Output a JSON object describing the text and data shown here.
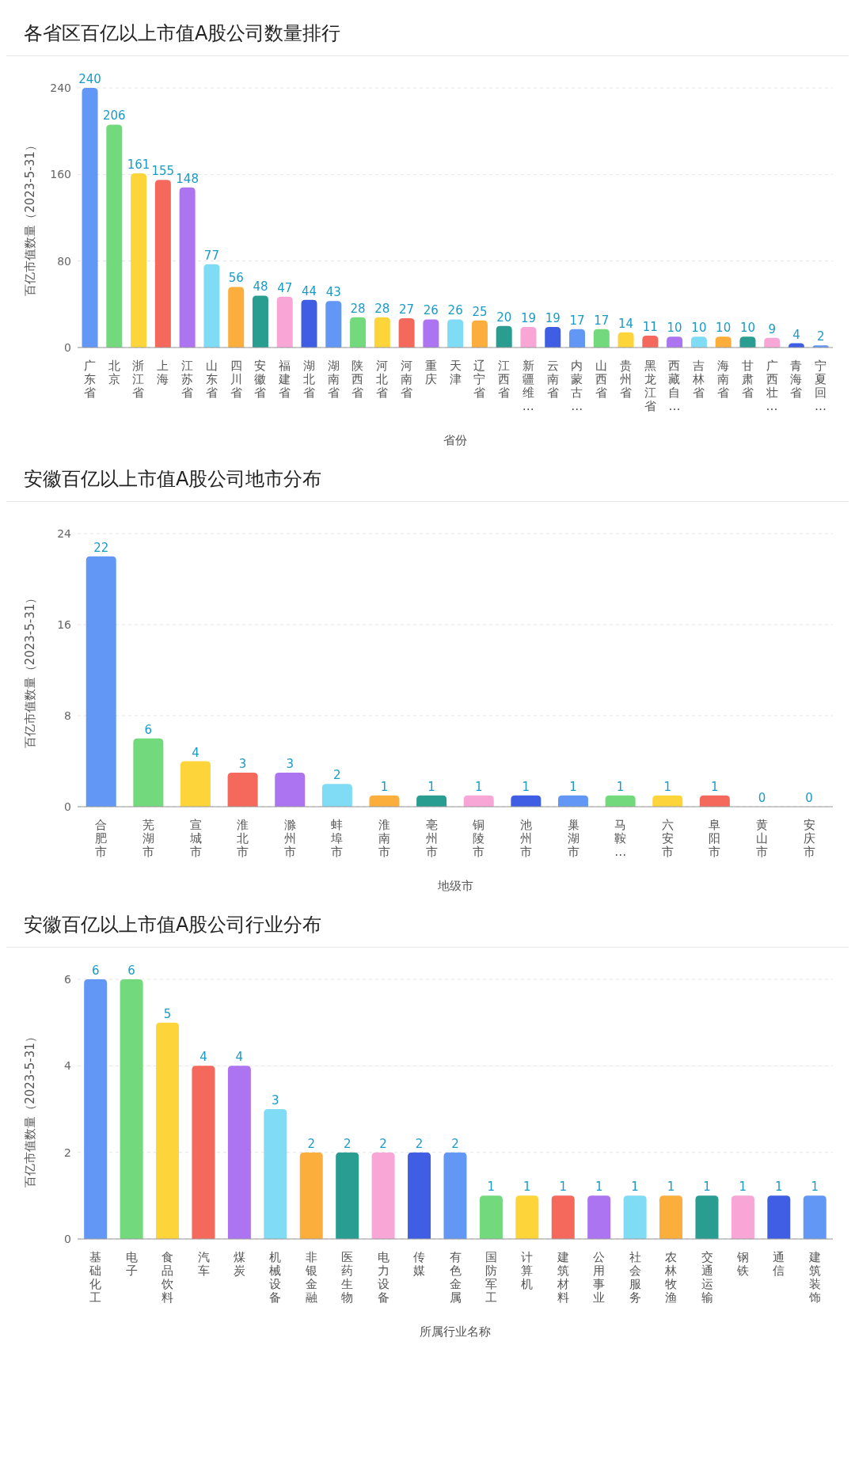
{
  "chart_data": [
    {
      "type": "bar",
      "title": "各省区百亿以上市值A股公司数量排行",
      "xlabel": "省份",
      "ylabel": "百亿市值数量（2023-5-31）",
      "categories": [
        "广东省",
        "北京",
        "浙江省",
        "上海",
        "江苏省",
        "山东省",
        "四川省",
        "安徽省",
        "福建省",
        "湖北省",
        "湖南省",
        "陕西省",
        "河北省",
        "河南省",
        "重庆",
        "天津",
        "辽宁省",
        "江西省",
        "新疆维…",
        "云南省",
        "内蒙古…",
        "山西省",
        "贵州省",
        "黑龙江省",
        "西藏自…",
        "吉林省",
        "海南省",
        "甘肃省",
        "广西壮…",
        "青海省",
        "宁夏回…"
      ],
      "values": [
        240,
        206,
        161,
        155,
        148,
        77,
        56,
        48,
        47,
        44,
        43,
        28,
        28,
        27,
        26,
        26,
        25,
        20,
        19,
        19,
        17,
        17,
        14,
        11,
        10,
        10,
        10,
        10,
        9,
        4,
        2
      ],
      "colors": [
        "#6297f5",
        "#72d97c",
        "#fdd53a",
        "#f5685c",
        "#ad74f2",
        "#80dbf5",
        "#fbae3c",
        "#2a9d91",
        "#f7a6d6",
        "#3f5ee3",
        "#6297f5",
        "#72d97c",
        "#fdd53a",
        "#f5685c",
        "#ad74f2",
        "#80dbf5",
        "#fbae3c",
        "#2a9d91",
        "#f7a6d6",
        "#3f5ee3",
        "#6297f5",
        "#72d97c",
        "#fdd53a",
        "#f5685c",
        "#ad74f2",
        "#80dbf5",
        "#fbae3c",
        "#2a9d91",
        "#f7a6d6",
        "#3f5ee3",
        "#6297f5"
      ],
      "ylim": [
        0,
        240
      ],
      "yticks": [
        0,
        80,
        160,
        240
      ],
      "grid": "y",
      "data_labels": true
    },
    {
      "type": "bar",
      "title": "安徽百亿以上市值A股公司地市分布",
      "xlabel": "地级市",
      "ylabel": "百亿市值数量（2023-5-31）",
      "categories": [
        "合肥市",
        "芜湖市",
        "宣城市",
        "淮北市",
        "滁州市",
        "蚌埠市",
        "淮南市",
        "亳州市",
        "铜陵市",
        "池州市",
        "巢湖市",
        "马鞍…",
        "六安市",
        "阜阳市",
        "黄山市",
        "安庆市"
      ],
      "values": [
        22,
        6,
        4,
        3,
        3,
        2,
        1,
        1,
        1,
        1,
        1,
        1,
        1,
        1,
        0,
        0
      ],
      "colors": [
        "#6297f5",
        "#72d97c",
        "#fdd53a",
        "#f5685c",
        "#ad74f2",
        "#80dbf5",
        "#fbae3c",
        "#2a9d91",
        "#f7a6d6",
        "#3f5ee3",
        "#6297f5",
        "#72d97c",
        "#fdd53a",
        "#f5685c",
        "#ad74f2",
        "#80dbf5"
      ],
      "ylim": [
        0,
        24
      ],
      "yticks": [
        0,
        8,
        16,
        24
      ],
      "grid": "y",
      "data_labels": true
    },
    {
      "type": "bar",
      "title": "安徽百亿以上市值A股公司行业分布",
      "xlabel": "所属行业名称",
      "ylabel": "百亿市值数量（2023-5-31）",
      "categories": [
        "基础化工",
        "电子",
        "食品饮料",
        "汽车",
        "煤炭",
        "机械设备",
        "非银金融",
        "医药生物",
        "电力设备",
        "传媒",
        "有色金属",
        "国防军工",
        "计算机",
        "建筑材料",
        "公用事业",
        "社会服务",
        "农林牧渔",
        "交通运输",
        "钢铁",
        "通信",
        "建筑装饰"
      ],
      "values": [
        6,
        6,
        5,
        4,
        4,
        3,
        2,
        2,
        2,
        2,
        2,
        1,
        1,
        1,
        1,
        1,
        1,
        1,
        1,
        1,
        1
      ],
      "colors": [
        "#6297f5",
        "#72d97c",
        "#fdd53a",
        "#f5685c",
        "#ad74f2",
        "#80dbf5",
        "#fbae3c",
        "#2a9d91",
        "#f7a6d6",
        "#3f5ee3",
        "#6297f5",
        "#72d97c",
        "#fdd53a",
        "#f5685c",
        "#ad74f2",
        "#80dbf5",
        "#fbae3c",
        "#2a9d91",
        "#f7a6d6",
        "#3f5ee3",
        "#6297f5"
      ],
      "ylim": [
        0,
        6
      ],
      "yticks": [
        0,
        2,
        4,
        6
      ],
      "grid": "y",
      "data_labels": true
    }
  ]
}
